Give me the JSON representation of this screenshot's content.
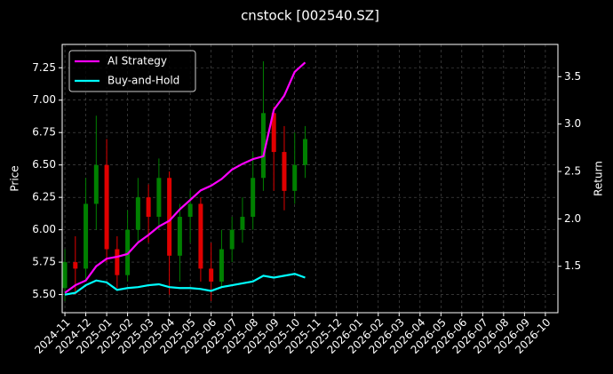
{
  "chart_data": {
    "type": "candlestick",
    "title": "cnstock [002540.SZ]",
    "ylabel": "Price",
    "y2label": "Return",
    "x": [
      0,
      0.5,
      1,
      1.5,
      2,
      2.5,
      3,
      3.5,
      4,
      4.5,
      5,
      5.5,
      6,
      6.5,
      7,
      7.5,
      8,
      8.5,
      9,
      9.5,
      10,
      10.5,
      11,
      11.5
    ],
    "open": [
      5.55,
      5.75,
      5.7,
      6.2,
      6.5,
      5.85,
      5.65,
      6.0,
      6.25,
      6.1,
      6.4,
      5.8,
      6.1,
      6.2,
      5.7,
      5.6,
      5.85,
      6.0,
      6.1,
      6.4,
      6.9,
      6.6,
      6.3,
      6.5
    ],
    "high": [
      5.85,
      5.95,
      6.4,
      6.88,
      6.7,
      5.95,
      6.15,
      6.4,
      6.35,
      6.55,
      6.45,
      6.2,
      6.3,
      6.25,
      5.9,
      6.0,
      6.1,
      6.25,
      6.6,
      7.3,
      6.95,
      6.8,
      6.75,
      6.8
    ],
    "low": [
      5.45,
      5.5,
      5.6,
      6.0,
      5.75,
      5.55,
      5.6,
      5.9,
      5.9,
      6.0,
      5.5,
      5.6,
      5.9,
      5.6,
      5.45,
      5.55,
      5.75,
      5.9,
      6.0,
      6.3,
      6.3,
      6.15,
      6.2,
      6.4
    ],
    "close": [
      5.75,
      5.7,
      6.2,
      6.5,
      5.85,
      5.65,
      6.0,
      6.25,
      6.1,
      6.4,
      5.8,
      6.1,
      6.2,
      5.7,
      5.6,
      5.85,
      6.0,
      6.1,
      6.4,
      6.9,
      6.6,
      6.3,
      6.5,
      6.7
    ],
    "up_color": "#008000",
    "down_color": "#e00000",
    "series": [
      {
        "name": "AI Strategy",
        "color": "#ff00ff",
        "axis": "y2",
        "values": [
          1.22,
          1.3,
          1.35,
          1.5,
          1.58,
          1.6,
          1.63,
          1.75,
          1.83,
          1.92,
          1.98,
          2.1,
          2.2,
          2.3,
          2.35,
          2.42,
          2.52,
          2.58,
          2.63,
          2.66,
          3.15,
          3.3,
          3.55,
          3.65
        ]
      },
      {
        "name": "Buy-and-Hold",
        "color": "#00ffff",
        "axis": "y2",
        "values": [
          1.2,
          1.22,
          1.3,
          1.35,
          1.33,
          1.25,
          1.27,
          1.28,
          1.3,
          1.31,
          1.28,
          1.27,
          1.27,
          1.26,
          1.24,
          1.28,
          1.3,
          1.32,
          1.34,
          1.4,
          1.38,
          1.4,
          1.42,
          1.38
        ]
      }
    ],
    "xlim": [
      -0.13,
      23.6
    ],
    "xticks": [
      {
        "value": 0,
        "label": "2024-11"
      },
      {
        "value": 1,
        "label": "2024-12"
      },
      {
        "value": 2,
        "label": "2025-01"
      },
      {
        "value": 3,
        "label": "2025-02"
      },
      {
        "value": 4,
        "label": "2025-03"
      },
      {
        "value": 5,
        "label": "2025-04"
      },
      {
        "value": 6,
        "label": "2025-05"
      },
      {
        "value": 7,
        "label": "2025-06"
      },
      {
        "value": 8,
        "label": "2025-07"
      },
      {
        "value": 9,
        "label": "2025-08"
      },
      {
        "value": 10,
        "label": "2025-09"
      },
      {
        "value": 11,
        "label": "2025-10"
      },
      {
        "value": 12,
        "label": "2025-11"
      },
      {
        "value": 13,
        "label": "2025-12"
      },
      {
        "value": 14,
        "label": "2026-01"
      },
      {
        "value": 15,
        "label": "2026-02"
      },
      {
        "value": 16,
        "label": "2026-03"
      },
      {
        "value": 17,
        "label": "2026-04"
      },
      {
        "value": 18,
        "label": "2026-05"
      },
      {
        "value": 19,
        "label": "2026-06"
      },
      {
        "value": 20,
        "label": "2026-07"
      },
      {
        "value": 21,
        "label": "2026-08"
      },
      {
        "value": 22,
        "label": "2026-09"
      },
      {
        "value": 23,
        "label": "2026-10"
      }
    ],
    "ylim": [
      5.36,
      7.43
    ],
    "yticks": [
      {
        "value": 5.5,
        "label": "5.50"
      },
      5.75,
      {
        "value": 6,
        "label": "6.00"
      },
      6.25,
      {
        "value": 6.5,
        "label": "6.50"
      },
      6.75,
      {
        "value": 7,
        "label": "7.00"
      },
      7.25
    ],
    "y2lim": [
      1.01,
      3.84
    ],
    "y2ticks": [
      1.5,
      {
        "value": 2,
        "label": "2.0"
      },
      2.5,
      {
        "value": 3,
        "label": "3.0"
      },
      3.5
    ],
    "grid": true,
    "legend": "upper left"
  }
}
